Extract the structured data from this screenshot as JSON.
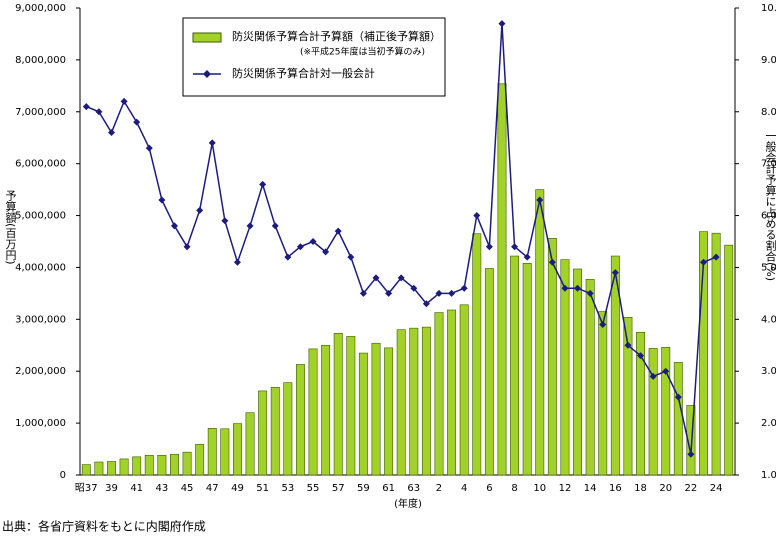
{
  "chart_data": {
    "type": "bar_line",
    "categories": [
      "昭37",
      null,
      "39",
      null,
      "41",
      null,
      "43",
      null,
      "45",
      null,
      "47",
      null,
      "49",
      null,
      "51",
      null,
      "53",
      null,
      "55",
      null,
      "57",
      null,
      "59",
      null,
      "61",
      null,
      "63",
      null,
      "2",
      null,
      "4",
      null,
      "6",
      null,
      "8",
      null,
      "10",
      null,
      "12",
      null,
      "14",
      null,
      "16",
      null,
      "18",
      null,
      "20",
      null,
      "22",
      null,
      "24",
      null
    ],
    "series": [
      {
        "name": "防災関係予算合計予算額（補正後予算額）",
        "type": "bar",
        "color": "#a2d12a",
        "axis": "y",
        "values": [
          200000,
          250000,
          260000,
          310000,
          350000,
          380000,
          380000,
          400000,
          440000,
          590000,
          900000,
          890000,
          990000,
          1200000,
          1620000,
          1690000,
          1780000,
          2130000,
          2430000,
          2500000,
          2730000,
          2670000,
          2350000,
          2540000,
          2450000,
          2800000,
          2830000,
          2850000,
          3130000,
          3180000,
          3280000,
          4650000,
          3980000,
          7540000,
          4220000,
          4080000,
          5500000,
          4560000,
          4150000,
          3970000,
          3770000,
          3150000,
          4220000,
          3040000,
          2750000,
          2440000,
          2460000,
          2170000,
          1340000,
          4690000,
          4660000,
          4430000
        ]
      },
      {
        "name": "防災関係予算合計対一般会計",
        "type": "line",
        "color": "#1c1c80",
        "axis": "y2",
        "values": [
          8.1,
          8.0,
          7.6,
          8.2,
          7.8,
          7.3,
          6.3,
          5.8,
          5.4,
          6.1,
          7.4,
          5.9,
          5.1,
          5.8,
          6.6,
          5.8,
          5.2,
          5.4,
          5.5,
          5.3,
          5.7,
          5.2,
          4.5,
          4.8,
          4.5,
          4.8,
          4.6,
          4.3,
          4.5,
          4.5,
          4.6,
          6.0,
          5.4,
          9.7,
          5.4,
          5.2,
          6.3,
          5.1,
          4.6,
          4.6,
          4.5,
          3.9,
          4.9,
          3.5,
          3.3,
          2.9,
          3.0,
          2.5,
          1.4,
          5.1,
          5.2,
          null
        ]
      }
    ],
    "legend_note": "(※平成25年度は当初予算のみ)",
    "ylabel": "予算額(百万円)",
    "y2label": "一般会計予算に占める割合(%)",
    "xlabel": "(年度)",
    "source": "出典：各省庁資料をもとに内閣府作成",
    "ylim": [
      0,
      9000000
    ],
    "yticks": [
      0,
      {
        "value": 1000000,
        "label": "1,000,000"
      },
      {
        "value": 2000000,
        "label": "2,000,000"
      },
      {
        "value": 3000000,
        "label": "3,000,000"
      },
      {
        "value": 4000000,
        "label": "4,000,000"
      },
      {
        "value": 5000000,
        "label": "5,000,000"
      },
      {
        "value": 6000000,
        "label": "6,000,000"
      },
      {
        "value": 7000000,
        "label": "7,000,000"
      },
      {
        "value": 8000000,
        "label": "8,000,000"
      },
      {
        "value": 9000000,
        "label": "9,000,000"
      }
    ],
    "y2lim": [
      1,
      10
    ],
    "y2ticks": [
      {
        "value": 1,
        "label": "1.0"
      },
      {
        "value": 2,
        "label": "2.0"
      },
      {
        "value": 3,
        "label": "3.0"
      },
      {
        "value": 4,
        "label": "4.0"
      },
      {
        "value": 5,
        "label": "5.0"
      },
      {
        "value": 6,
        "label": "6.0"
      },
      {
        "value": 7,
        "label": "7.0"
      },
      {
        "value": 8,
        "label": "8.0"
      },
      {
        "value": 9,
        "label": "9.0"
      },
      {
        "value": 10,
        "label": "10.0"
      }
    ]
  }
}
